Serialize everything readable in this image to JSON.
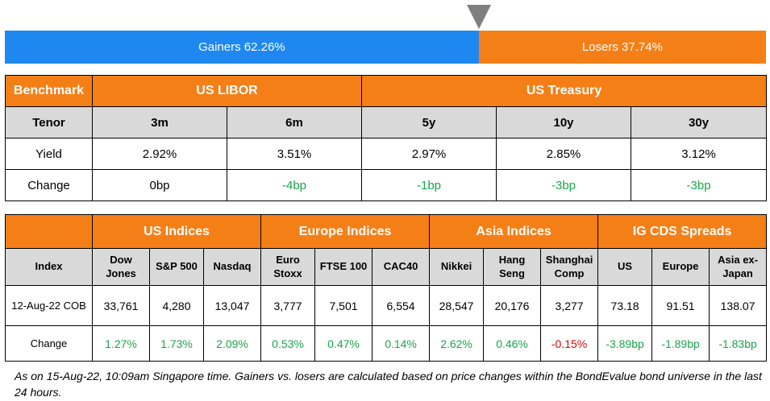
{
  "market_bar": {
    "gainers_label": "Gainers 62.26%",
    "losers_label": "Losers 37.74%",
    "gainers_pct": 62.26,
    "losers_pct": 37.74,
    "gainers_color": "#1e88f0",
    "losers_color": "#f57f17",
    "marker_icon": "triangle-down-icon"
  },
  "rates_table": {
    "benchmark_label": "Benchmark",
    "libor_label": "US LIBOR",
    "treasury_label": "US Treasury",
    "tenor_label": "Tenor",
    "tenors": [
      "3m",
      "6m",
      "5y",
      "10y",
      "30y"
    ],
    "yield_label": "Yield",
    "yields": [
      "2.92%",
      "3.51%",
      "2.97%",
      "2.85%",
      "3.12%"
    ],
    "change_label": "Change",
    "changes": [
      "0bp",
      "-4bp",
      "-1bp",
      "-3bp",
      "-3bp"
    ]
  },
  "indices_table": {
    "groups": [
      "US Indices",
      "Europe Indices",
      "Asia Indices",
      "IG CDS Spreads"
    ],
    "index_label": "Index",
    "columns": [
      "Dow\nJones",
      "S&P 500",
      "Nasdaq",
      "Euro\nStoxx",
      "FTSE 100",
      "CAC40",
      "Nikkei",
      "Hang\nSeng",
      "Shanghai\nComp",
      "US",
      "Europe",
      "Asia ex-\nJapan"
    ],
    "values_label": "12-Aug-22 COB",
    "values": [
      "33,761",
      "4,280",
      "13,047",
      "3,777",
      "7,501",
      "6,554",
      "28,547",
      "20,176",
      "3,277",
      "73.18",
      "91.51",
      "138.07"
    ],
    "change_label": "Change",
    "changes": [
      "1.27%",
      "1.73%",
      "2.09%",
      "0.53%",
      "0.47%",
      "0.14%",
      "2.62%",
      "0.46%",
      "-0.15%",
      "-3.89bp",
      "-1.89bp",
      "-1.83bp"
    ]
  },
  "colors": {
    "header_orange": "#f57f17",
    "subheader_gray": "#d9d9d9",
    "positive_green": "#1aa64a",
    "negative_red": "#e00000"
  },
  "footnote": "As on 15-Aug-22, 10:09am Singapore time. Gainers vs. losers are calculated based on price changes within the BondEvalue bond universe in the last 24 hours."
}
